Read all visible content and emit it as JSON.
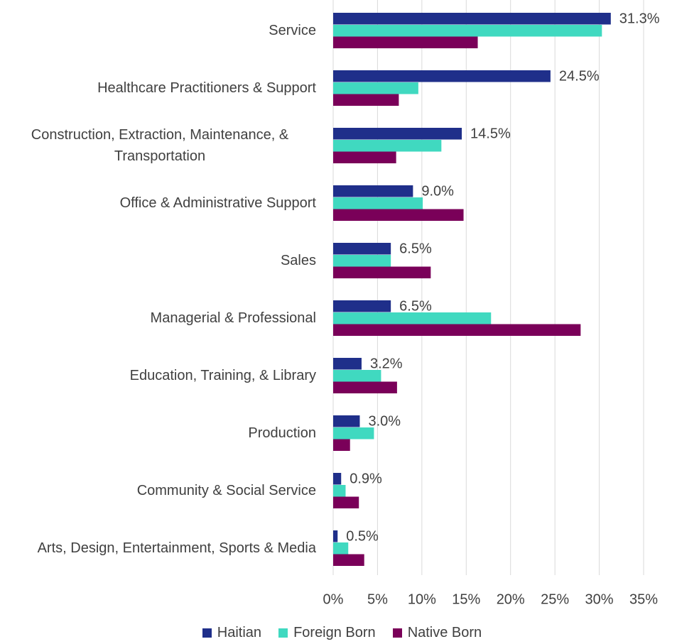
{
  "chart_data": {
    "type": "hbar",
    "categories": [
      "Service",
      "Healthcare Practitioners & Support",
      "Construction, Extraction, Maintenance, & Transportation",
      "Office & Administrative Support",
      "Sales",
      "Managerial & Professional",
      "Education, Training, & Library",
      "Production",
      "Community & Social Service",
      "Arts, Design, Entertainment, Sports & Media"
    ],
    "series": [
      {
        "name": "Haitian",
        "color": "#1f2f8a",
        "values": [
          31.3,
          24.5,
          14.5,
          9.0,
          6.5,
          6.5,
          3.2,
          3.0,
          0.9,
          0.5
        ],
        "value_labels": [
          "31.3%",
          "24.5%",
          "14.5%",
          "9.0%",
          "6.5%",
          "6.5%",
          "3.2%",
          "3.0%",
          "0.9%",
          "0.5%"
        ]
      },
      {
        "name": "Foreign Born",
        "color": "#40d9c0",
        "values": [
          30.3,
          9.6,
          12.2,
          10.1,
          6.5,
          17.8,
          5.4,
          4.6,
          1.4,
          1.7
        ]
      },
      {
        "name": "Native Born",
        "color": "#7a0059",
        "values": [
          16.3,
          7.4,
          7.1,
          14.7,
          11.0,
          27.9,
          7.2,
          1.9,
          2.9,
          3.5
        ]
      }
    ],
    "xlim": [
      0,
      35
    ],
    "xticks": [
      {
        "value": 0,
        "label": "0%"
      },
      {
        "value": 5,
        "label": "5%"
      },
      {
        "value": 10,
        "label": "10%"
      },
      {
        "value": 15,
        "label": "15%"
      },
      {
        "value": 20,
        "label": "20%"
      },
      {
        "value": 25,
        "label": "25%"
      },
      {
        "value": 30,
        "label": "30%"
      },
      {
        "value": 35,
        "label": "35%"
      }
    ],
    "grid": true,
    "legend": "bottom"
  }
}
